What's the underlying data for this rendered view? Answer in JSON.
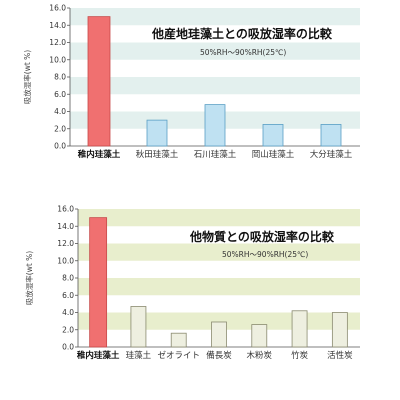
{
  "chart_data": [
    {
      "type": "bar",
      "title": "他産地珪藻土との吸放湿率の比較",
      "subtitle": "50%RH～90%RH(25℃)",
      "ylabel": "吸放湿率(wt %)",
      "ylim": [
        0,
        16
      ],
      "yticks": [
        "0.0",
        "2.0",
        "4.0",
        "6.0",
        "8.0",
        "10.0",
        "12.0",
        "14.0",
        "16.0"
      ],
      "grid": true,
      "band_color": "#e3f0ee",
      "categories": [
        "稚内珪藻土",
        "秋田珪藻土",
        "石川珪藻土",
        "岡山珪藻土",
        "大分珪藻土"
      ],
      "values": [
        15.0,
        3.0,
        4.8,
        2.5,
        2.5
      ],
      "highlight_index": 0,
      "highlight_color": "#f07070",
      "highlight_stroke": "#c84a4a",
      "bar_color": "#bfe1f2",
      "bar_stroke": "#5a9fc4"
    },
    {
      "type": "bar",
      "title": "他物質との吸放湿率の比較",
      "subtitle": "50%RH～90%RH(25℃)",
      "ylabel": "吸放湿率(wt %)",
      "ylim": [
        0,
        16
      ],
      "yticks": [
        "0.0",
        "2.0",
        "4.0",
        "6.0",
        "8.0",
        "10.0",
        "12.0",
        "14.0",
        "16.0"
      ],
      "grid": true,
      "band_color": "#e8eecd",
      "categories": [
        "稚内珪藻土",
        "珪藻土",
        "ゼオライト",
        "備長炭",
        "木粉炭",
        "竹炭",
        "活性炭"
      ],
      "values": [
        15.0,
        4.7,
        1.6,
        2.9,
        2.6,
        4.2,
        4.0
      ],
      "highlight_index": 0,
      "highlight_color": "#f07070",
      "highlight_stroke": "#c84a4a",
      "bar_color": "#eeefe0",
      "bar_stroke": "#8a8a70"
    }
  ]
}
